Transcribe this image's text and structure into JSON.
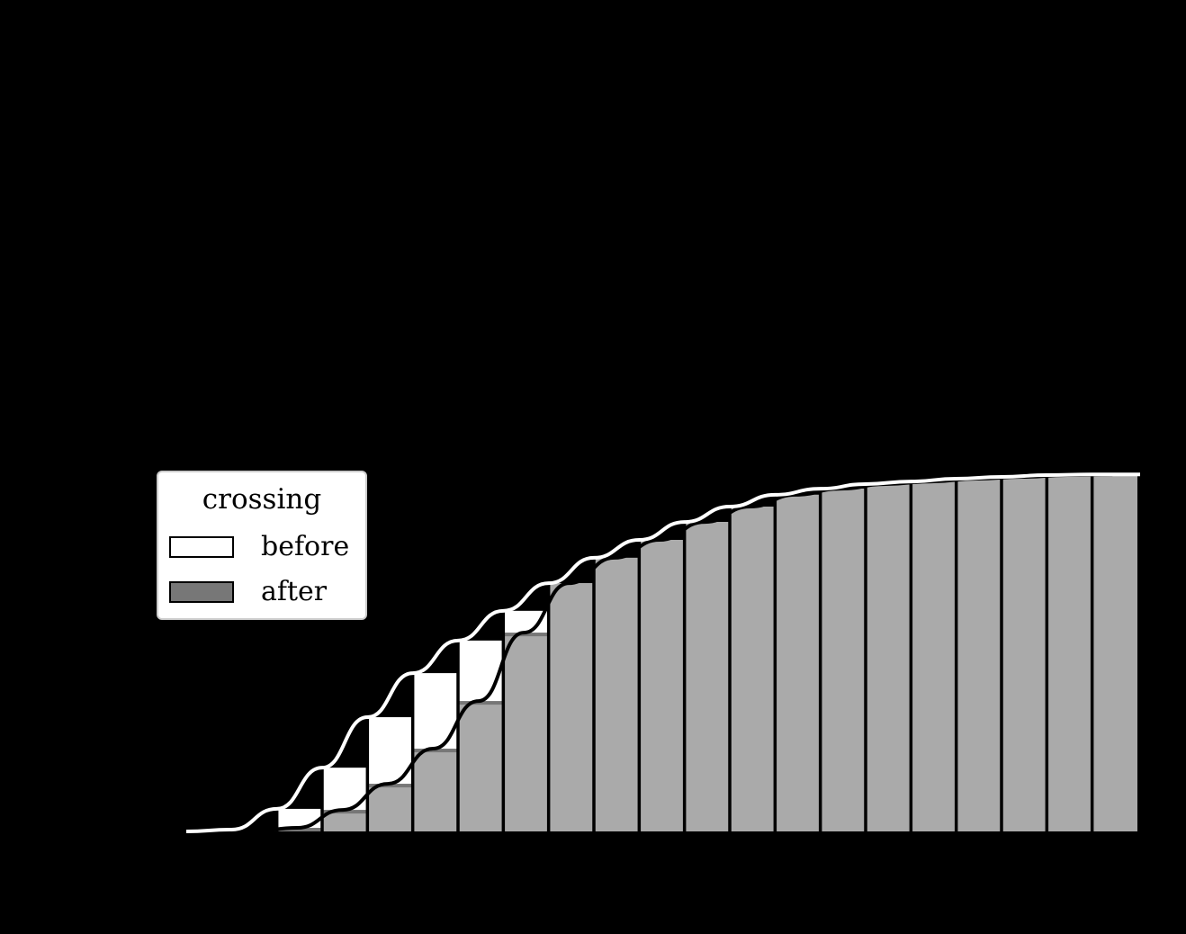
{
  "chart_data": {
    "type": "bar",
    "subtype": "cumulative-histogram-with-cdf-lines",
    "title": "",
    "xlabel": "",
    "ylabel": "",
    "grid": false,
    "legend": {
      "title": "crossing",
      "position": "center-left",
      "entries": [
        {
          "label": "before",
          "color": "#ffffff"
        },
        {
          "label": "after",
          "color": "#777777"
        }
      ]
    },
    "bins": 21,
    "ylim": [
      0,
      1
    ],
    "series": [
      {
        "name": "before",
        "kind": "bars",
        "color": "#ffffff",
        "values": [
          0.0,
          0.005,
          0.063,
          0.178,
          0.319,
          0.442,
          0.533,
          0.616,
          0.693,
          0.764,
          0.814,
          0.864,
          0.907,
          0.94,
          0.957,
          0.97,
          0.977,
          0.985,
          0.99,
          0.995,
          0.997
        ]
      },
      {
        "name": "after",
        "kind": "bars",
        "color": "#aaaaaa",
        "values": [
          0.0,
          0.0,
          0.01,
          0.06,
          0.133,
          0.231,
          0.364,
          0.555,
          0.693,
          0.764,
          0.814,
          0.864,
          0.907,
          0.94,
          0.957,
          0.97,
          0.977,
          0.985,
          0.99,
          0.995,
          0.997
        ]
      },
      {
        "name": "before-cdf",
        "kind": "line",
        "color": "#ffffff"
      },
      {
        "name": "after-cdf",
        "kind": "line",
        "color": "#000000"
      }
    ]
  },
  "legend": {
    "title": "crossing",
    "items": [
      {
        "label": "before",
        "swatch": "#ffffff"
      },
      {
        "label": "after",
        "swatch": "#777777"
      }
    ]
  },
  "colors": {
    "background": "#000000",
    "before_fill": "#ffffff",
    "after_fill": "#aaaaaa",
    "after_top_edge": "#777777",
    "bar_edge": "#000000",
    "before_curve": "#ffffff",
    "after_curve": "#000000"
  }
}
